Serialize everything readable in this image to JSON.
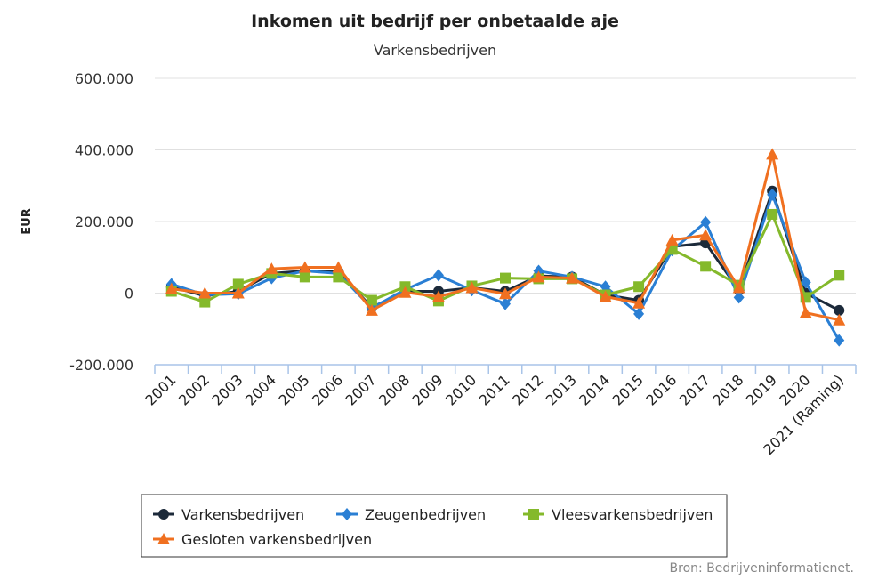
{
  "chart_data": {
    "type": "line",
    "title": "Inkomen uit bedrijf per onbetaalde aje",
    "subtitle": "Varkensbedrijven",
    "ylabel": "EUR",
    "xlabel": "",
    "ylim": [
      -200000,
      600000
    ],
    "yticks": [
      -200000,
      0,
      200000,
      400000,
      600000
    ],
    "ytick_labels": [
      "-200.000",
      "0",
      "200.000",
      "400.000",
      "600.000"
    ],
    "grid": true,
    "legend_position": "bottom",
    "categories": [
      "2001",
      "2002",
      "2003",
      "2004",
      "2005",
      "2006",
      "2007",
      "2008",
      "2009",
      "2010",
      "2011",
      "2012",
      "2013",
      "2014",
      "2015",
      "2016",
      "2017",
      "2018",
      "2019",
      "2020",
      "2021 (Raming)"
    ],
    "series": [
      {
        "name": "Varkensbedrijven",
        "color": "#1c2a3a",
        "marker": "circle",
        "values": [
          18000,
          -8000,
          5000,
          55000,
          62000,
          60000,
          -40000,
          5000,
          5000,
          15000,
          5000,
          48000,
          45000,
          -5000,
          -20000,
          130000,
          140000,
          8000,
          285000,
          0,
          -48000
        ]
      },
      {
        "name": "Zeugenbedrijven",
        "color": "#2a7fd4",
        "marker": "diamond",
        "values": [
          25000,
          -5000,
          -2000,
          42000,
          62000,
          55000,
          -42000,
          10000,
          50000,
          8000,
          -30000,
          62000,
          45000,
          18000,
          -58000,
          120000,
          198000,
          -12000,
          275000,
          30000,
          -132000
        ]
      },
      {
        "name": "Vleesvarkensbedrijven",
        "color": "#84b92b",
        "marker": "square",
        "values": [
          5000,
          -25000,
          25000,
          55000,
          45000,
          45000,
          -20000,
          18000,
          -22000,
          20000,
          42000,
          40000,
          40000,
          -5000,
          18000,
          122000,
          75000,
          22000,
          220000,
          -12000,
          50000
        ]
      },
      {
        "name": "Gesloten varkensbedrijven",
        "color": "#f07020",
        "marker": "triangle",
        "values": [
          12000,
          0,
          0,
          68000,
          72000,
          72000,
          -48000,
          2000,
          -10000,
          15000,
          -2000,
          45000,
          42000,
          -10000,
          -28000,
          148000,
          162000,
          15000,
          388000,
          -55000,
          -75000
        ]
      }
    ]
  },
  "credit": "Bron: Bedrijveninformatienet."
}
